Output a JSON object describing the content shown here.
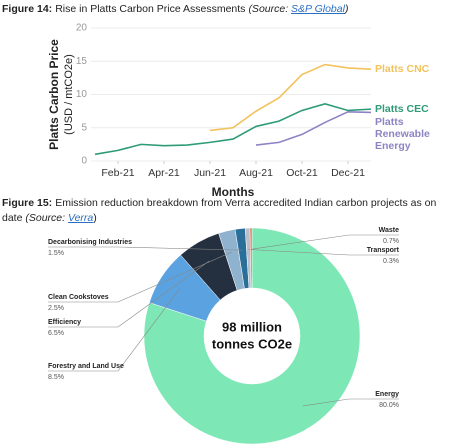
{
  "chart_data": [
    {
      "type": "line",
      "caption": {
        "label": "Figure 14:",
        "text": "Rise in Platts Carbon Price Assessments",
        "source_open": "(Source:",
        "source_link": "S&P Global",
        "source_close": ")"
      },
      "ylabel": [
        "Platts Carbon Price",
        "(USD / mtCO2e)"
      ],
      "xlabel": "Months",
      "x": [
        "Jan-21",
        "Feb-21",
        "Mar-21",
        "Apr-21",
        "May-21",
        "Jun-21",
        "Jul-21",
        "Aug-21",
        "Sep-21",
        "Oct-21",
        "Nov-21",
        "Dec-21",
        "Jan-22"
      ],
      "xticks": [
        "Feb-21",
        "Apr-21",
        "Jun-21",
        "Aug-21",
        "Oct-21",
        "Dec-21"
      ],
      "ylim": [
        0,
        20
      ],
      "yticks": [
        0,
        5,
        10,
        15,
        20
      ],
      "grid": true,
      "series": [
        {
          "name": "Platts CNC",
          "color": "#f2c25c",
          "values": [
            null,
            null,
            null,
            null,
            null,
            4.6,
            5.0,
            7.5,
            9.5,
            13.0,
            14.5,
            14.0,
            13.8
          ]
        },
        {
          "name": "Platts CEC",
          "color": "#2e9b78",
          "values": [
            1.0,
            1.6,
            2.5,
            2.3,
            2.4,
            2.8,
            3.3,
            5.2,
            6.0,
            7.6,
            8.6,
            7.6,
            7.8
          ]
        },
        {
          "name": "Platts Renewable Energy",
          "color": "#8c84c4",
          "values": [
            null,
            null,
            null,
            null,
            null,
            null,
            null,
            2.4,
            2.8,
            4.0,
            5.8,
            7.4,
            7.3
          ]
        }
      ]
    },
    {
      "type": "pie",
      "caption": {
        "label": "Figure 15:",
        "text": "Emission reduction breakdown from Verra accredited Indian carbon projects as on date",
        "source_open": "(Source:",
        "source_link": "Verra",
        "source_close": ")"
      },
      "center_label": [
        "98 million",
        "tonnes CO2e"
      ],
      "categories": [
        "Energy",
        "Forestry and Land Use",
        "Efficiency",
        "Clean Cookstoves",
        "Decarbonising Industries",
        "Waste",
        "Transport"
      ],
      "values": [
        80.0,
        8.5,
        6.5,
        2.5,
        1.5,
        0.7,
        0.3
      ],
      "value_labels": [
        "80.0%",
        "8.5%",
        "6.5%",
        "2.5%",
        "1.5%",
        "0.7%",
        "0.3%"
      ],
      "colors": [
        "#7de8b5",
        "#5ba3e0",
        "#24303f",
        "#8fb3cf",
        "#2a6f99",
        "#b7c0c8",
        "#e07060"
      ]
    }
  ]
}
